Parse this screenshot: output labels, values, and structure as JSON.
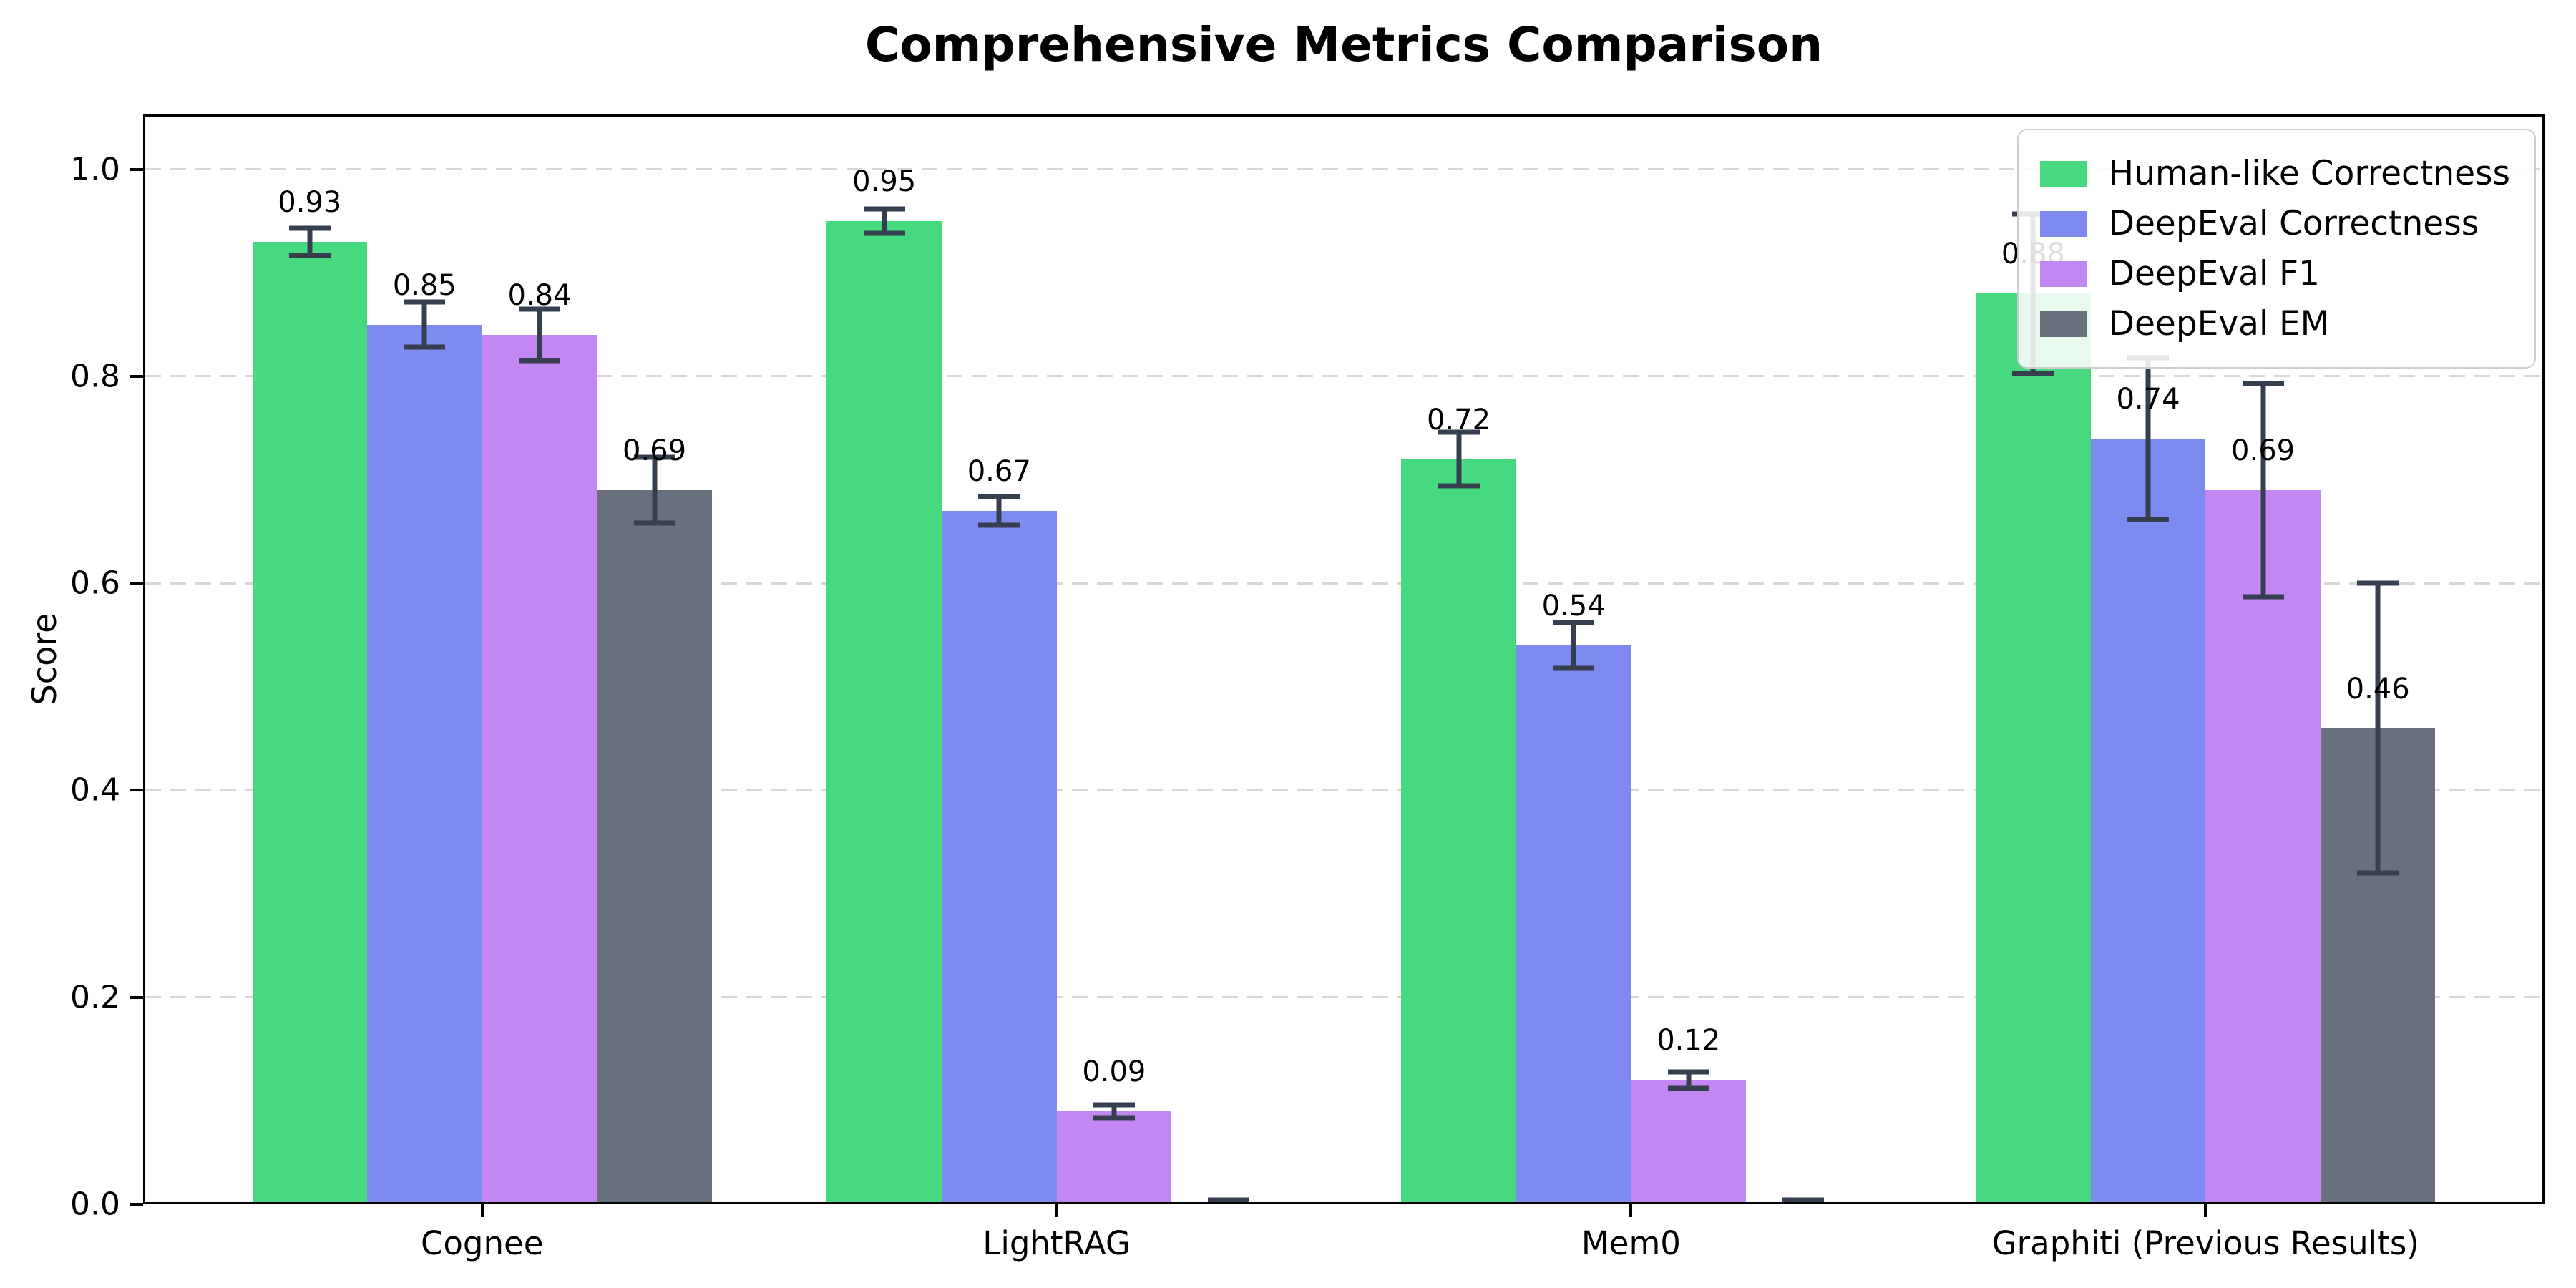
{
  "title": "Comprehensive Metrics Comparison",
  "axes": {
    "ylabel": "Score",
    "yticks": [
      "0.0",
      "0.2",
      "0.4",
      "0.6",
      "0.8",
      "1.0"
    ],
    "xticklabels": [
      "Cognee",
      "LightRAG",
      "Mem0",
      "Graphiti (Previous Results)"
    ]
  },
  "legend": {
    "position": "upper-right",
    "entries": [
      "Human-like Correctness",
      "DeepEval Correctness",
      "DeepEval F1",
      "DeepEval EM"
    ]
  },
  "colors": {
    "human_like_correctness": "#47d97f",
    "deepeval_correctness": "#7f8af0",
    "deepeval_f1": "#c287f2",
    "deepeval_em": "#68707e",
    "error_bar": "#353f4f",
    "grid": "#d8d8d8",
    "legend_border": "#cccccc"
  },
  "chart_data": {
    "type": "bar",
    "title": "Comprehensive Metrics Comparison",
    "xlabel": "",
    "ylabel": "Score",
    "categories": [
      "Cognee",
      "LightRAG",
      "Mem0",
      "Graphiti (Previous Results)"
    ],
    "series": [
      {
        "name": "Human-like Correctness",
        "color": "#47d97f",
        "values": [
          0.93,
          0.95,
          0.72,
          0.88
        ],
        "errors": [
          0.013,
          0.012,
          0.026,
          0.077
        ],
        "labels": [
          "0.93",
          "0.95",
          "0.72",
          "0.88"
        ]
      },
      {
        "name": "DeepEval Correctness",
        "color": "#7f8af0",
        "values": [
          0.85,
          0.67,
          0.54,
          0.74
        ],
        "errors": [
          0.022,
          0.014,
          0.022,
          0.078
        ],
        "labels": [
          "0.85",
          "0.67",
          "0.54",
          "0.74"
        ]
      },
      {
        "name": "DeepEval F1",
        "color": "#c287f2",
        "values": [
          0.84,
          0.09,
          0.12,
          0.69
        ],
        "errors": [
          0.025,
          0.006,
          0.008,
          0.103
        ],
        "labels": [
          "0.84",
          "0.09",
          "0.12",
          "0.69"
        ]
      },
      {
        "name": "DeepEval EM",
        "color": "#68707e",
        "values": [
          0.69,
          0.0,
          0.0,
          0.46
        ],
        "errors": [
          0.032,
          0.004,
          0.004,
          0.14
        ],
        "labels": [
          "0.69",
          null,
          null,
          "0.46"
        ]
      }
    ],
    "yticks": [
      0.0,
      0.2,
      0.4,
      0.6,
      0.8,
      1.0
    ],
    "ylim": [
      0,
      1.053
    ],
    "grid": "horizontal-dashed",
    "legend_position": "upper-right"
  }
}
